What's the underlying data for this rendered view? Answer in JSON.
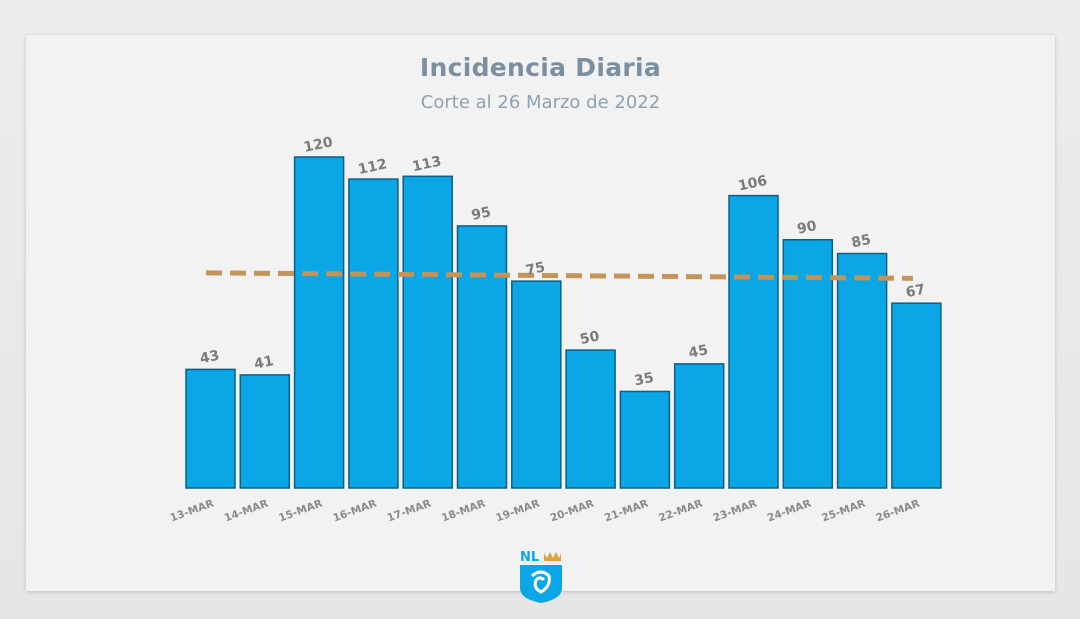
{
  "chart_data": {
    "type": "bar",
    "title": "Incidencia Diaria",
    "subtitle": "Corte al 26 Marzo de 2022",
    "categories": [
      "13-MAR",
      "14-MAR",
      "15-MAR",
      "16-MAR",
      "17-MAR",
      "18-MAR",
      "19-MAR",
      "20-MAR",
      "21-MAR",
      "22-MAR",
      "23-MAR",
      "24-MAR",
      "25-MAR",
      "26-MAR"
    ],
    "values": [
      43,
      41,
      120,
      112,
      113,
      95,
      75,
      50,
      35,
      45,
      106,
      90,
      85,
      67
    ],
    "trend_line": {
      "start": 78,
      "end": 76
    },
    "ylim": [
      0,
      125
    ],
    "grid": false,
    "xlabel": "",
    "ylabel": "",
    "colors": {
      "bar": "#0aa6e6",
      "bar_border": "#0b5f86",
      "trend": "#c2945a",
      "value_label": "#7a7a7a",
      "tick_label": "#8a8a8a",
      "title": "#7b8fa0"
    }
  },
  "logo": {
    "text": "NL",
    "icon": "nuevo-leon-shield-icon"
  }
}
